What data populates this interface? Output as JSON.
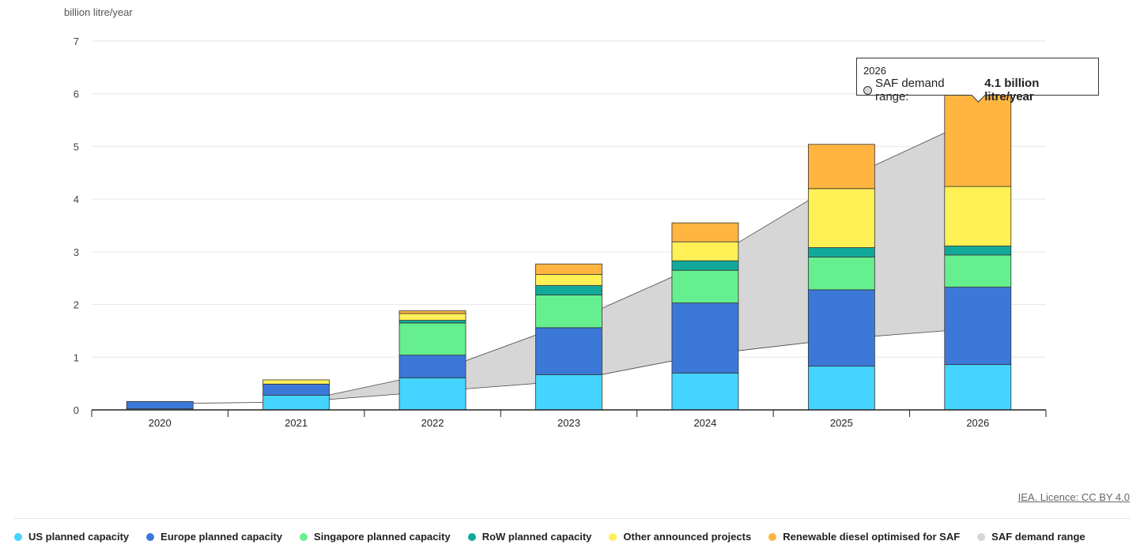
{
  "chart_data": {
    "type": "bar",
    "stacked": true,
    "unit_label": "billion litre/year",
    "categories": [
      "2020",
      "2021",
      "2022",
      "2023",
      "2024",
      "2025",
      "2026"
    ],
    "ylim": [
      0,
      7
    ],
    "yticks": [
      0,
      1,
      2,
      3,
      4,
      5,
      6,
      7
    ],
    "grid": true,
    "series": [
      {
        "name": "US planned capacity",
        "color": "#45d3ff",
        "values": [
          0.02,
          0.28,
          0.61,
          0.67,
          0.7,
          0.83,
          0.86
        ]
      },
      {
        "name": "Europe planned capacity",
        "color": "#3c78d8",
        "values": [
          0.14,
          0.21,
          0.43,
          0.89,
          1.33,
          1.45,
          1.47
        ]
      },
      {
        "name": "Singapore planned capacity",
        "color": "#66ef8e",
        "values": [
          0.0,
          0.0,
          0.61,
          0.62,
          0.62,
          0.62,
          0.61
        ]
      },
      {
        "name": "RoW planned capacity",
        "color": "#12a99a",
        "values": [
          0.0,
          0.0,
          0.05,
          0.18,
          0.18,
          0.18,
          0.17
        ]
      },
      {
        "name": "Other announced projects",
        "color": "#fff056",
        "values": [
          0.0,
          0.08,
          0.13,
          0.21,
          0.36,
          1.12,
          1.13
        ]
      },
      {
        "name": "Renewable diesel optimised for SAF",
        "color": "#ffb540",
        "values": [
          0.0,
          0.0,
          0.05,
          0.2,
          0.36,
          0.84,
          1.77
        ]
      }
    ],
    "range_series": {
      "name": "SAF demand range",
      "color": "#d6d6d6",
      "low": [
        0.12,
        0.15,
        0.35,
        0.55,
        1.05,
        1.35,
        1.55
      ],
      "high": [
        0.12,
        0.15,
        0.7,
        1.65,
        2.8,
        4.35,
        5.55
      ]
    },
    "tooltip": {
      "category": "2026",
      "series_label": "SAF demand range:",
      "value_text": "4.1 billion litre/year"
    }
  },
  "licence_text": "IEA. Licence: CC BY 4.0"
}
